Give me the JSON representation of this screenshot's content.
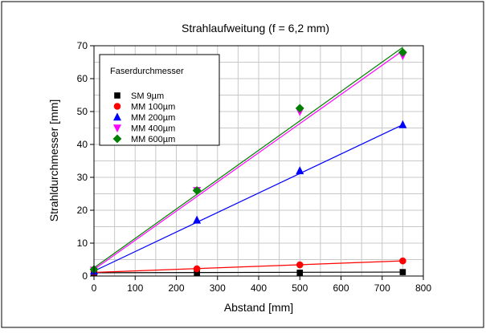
{
  "chart_data": {
    "type": "scatter",
    "title": "Strahlaufweitung (f = 6,2 mm)",
    "xlabel": "Abstand [mm]",
    "ylabel": "Strahldurchmesser [mm]",
    "xlim": [
      0,
      800
    ],
    "ylim": [
      0,
      70
    ],
    "xticks": [
      0,
      100,
      200,
      300,
      400,
      500,
      600,
      700,
      800
    ],
    "yticks": [
      0,
      10,
      20,
      30,
      40,
      50,
      60,
      70
    ],
    "grid": true,
    "legend": {
      "title": "Faserdurchmesser",
      "placement": "top-left"
    },
    "series": [
      {
        "name": "SM 9µm",
        "color": "#000000",
        "marker": "square",
        "x": [
          0,
          250,
          500,
          750
        ],
        "y": [
          1.0,
          1.0,
          1.0,
          1.2
        ],
        "fit": [
          1.0,
          1.2
        ]
      },
      {
        "name": "MM 100µm",
        "color": "#ff0000",
        "marker": "circle",
        "x": [
          0,
          250,
          500,
          750
        ],
        "y": [
          1.2,
          2.2,
          3.4,
          4.6
        ],
        "fit": [
          1.1,
          4.6
        ]
      },
      {
        "name": "MM 200µm",
        "color": "#0000ff",
        "marker": "triangle",
        "x": [
          0,
          250,
          500,
          750
        ],
        "y": [
          1.5,
          17.0,
          32.0,
          46.0
        ],
        "fit": [
          1.5,
          46.0
        ]
      },
      {
        "name": "MM 400µm",
        "color": "#ff00ff",
        "marker": "triangle-down",
        "x": [
          0,
          250,
          500,
          750
        ],
        "y": [
          1.8,
          26.0,
          50.0,
          67.0
        ],
        "fit": [
          2.0,
          68.5
        ]
      },
      {
        "name": "MM 600µm",
        "color": "#008000",
        "marker": "diamond",
        "x": [
          0,
          250,
          500,
          750
        ],
        "y": [
          2.0,
          26.0,
          51.0,
          68.0
        ],
        "fit": [
          2.5,
          69.5
        ]
      }
    ]
  }
}
